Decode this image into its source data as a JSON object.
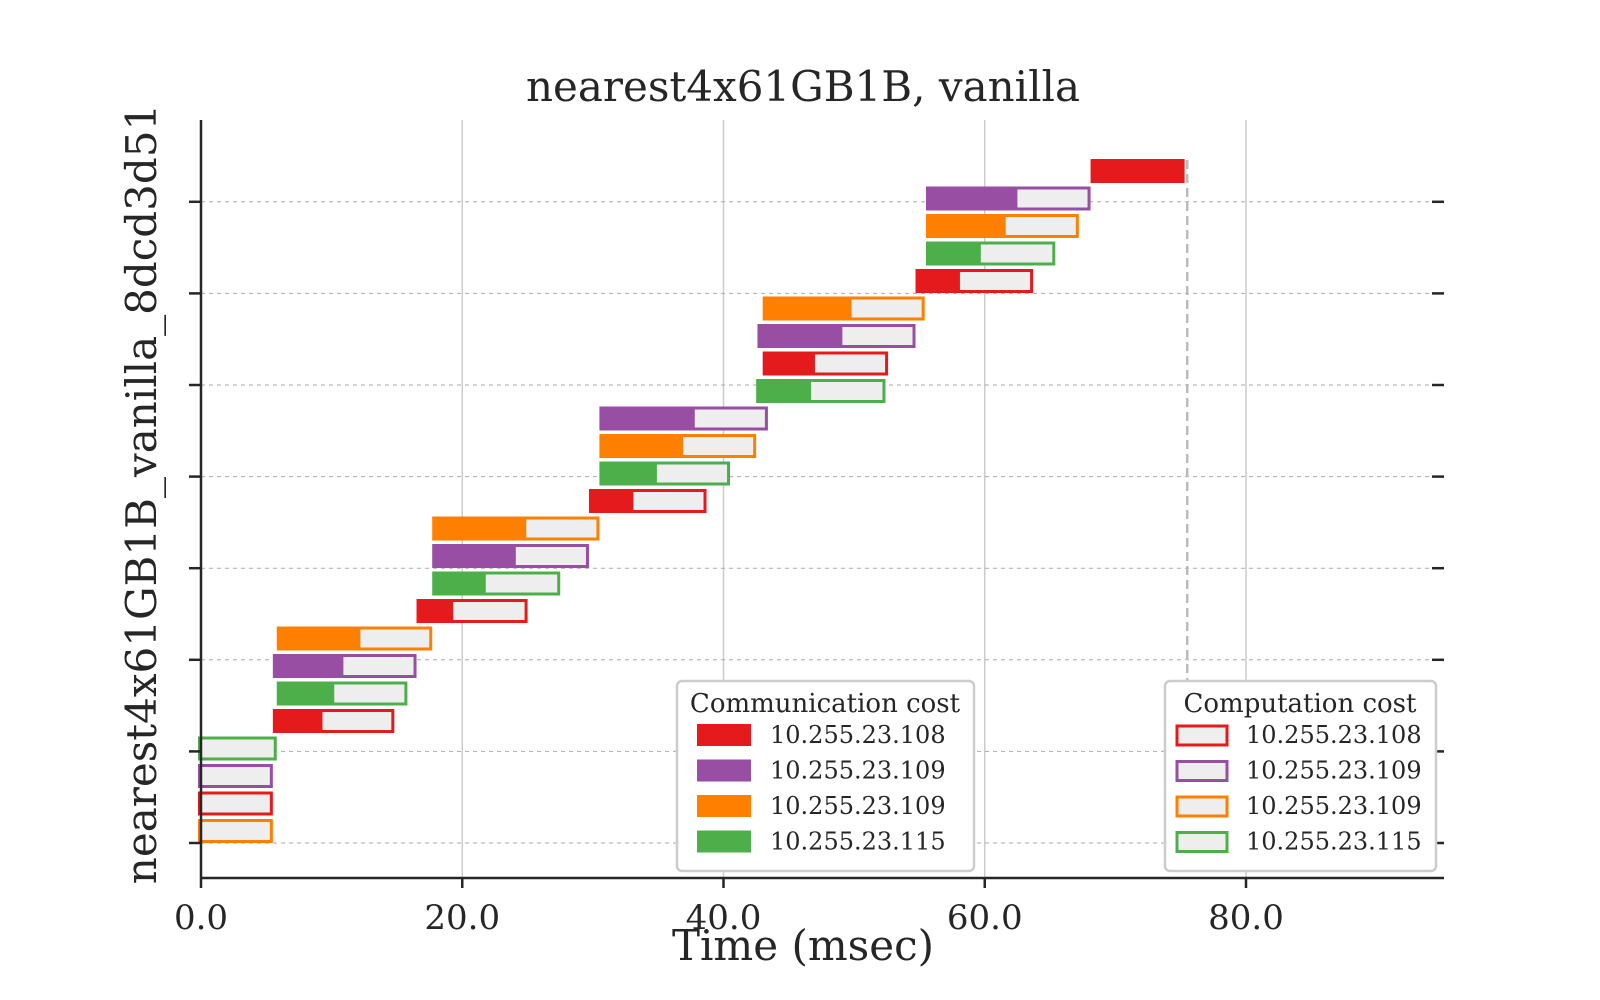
{
  "chart_data": {
    "type": "gantt",
    "title": "nearest4x61GB1B, vanilla",
    "xlabel": "Time (msec)",
    "ylabel": "nearest4x61GB1B_vanilla_8dcd3d51",
    "xlim": [
      0,
      95
    ],
    "xticks": [
      0,
      20,
      40,
      60,
      80
    ],
    "xtick_labels": [
      "0.0",
      "20.0",
      "40.0",
      "60.0",
      "80.0"
    ],
    "y_levels": 8,
    "grid": {
      "x": "solid-light",
      "y": "dashed-at-ticks"
    },
    "end_marker_x": 75.5,
    "colors": {
      "10.255.23.108": "#e41a1c",
      "10.255.23.109a": "#984ea3",
      "10.255.23.109b": "#ff7f00",
      "10.255.23.115": "#4daf4a",
      "compute_fill": "#eeeeee",
      "end_marker": "#bbbbbb"
    },
    "hosts": [
      {
        "key": "10.255.23.108",
        "label": "10.255.23.108"
      },
      {
        "key": "10.255.23.109a",
        "label": "10.255.23.109"
      },
      {
        "key": "10.255.23.109b",
        "label": "10.255.23.109"
      },
      {
        "key": "10.255.23.115",
        "label": "10.255.23.115"
      }
    ],
    "tasks": [
      {
        "host": "10.255.23.109b",
        "row": 0,
        "comm_start": 0.0,
        "comm_end": 0.0,
        "comp_end": 5.5
      },
      {
        "host": "10.255.23.108",
        "row": 1,
        "comm_start": 0.0,
        "comm_end": 0.0,
        "comp_end": 5.5
      },
      {
        "host": "10.255.23.109a",
        "row": 2,
        "comm_start": 0.0,
        "comm_end": 0.0,
        "comp_end": 5.5
      },
      {
        "host": "10.255.23.115",
        "row": 3,
        "comm_start": 0.0,
        "comm_end": 0.0,
        "comp_end": 5.8
      },
      {
        "host": "10.255.23.108",
        "row": 4,
        "comm_start": 5.5,
        "comm_end": 9.3,
        "comp_end": 14.8
      },
      {
        "host": "10.255.23.115",
        "row": 5,
        "comm_start": 5.8,
        "comm_end": 10.2,
        "comp_end": 15.8
      },
      {
        "host": "10.255.23.109a",
        "row": 6,
        "comm_start": 5.5,
        "comm_end": 10.9,
        "comp_end": 16.5
      },
      {
        "host": "10.255.23.109b",
        "row": 7,
        "comm_start": 5.8,
        "comm_end": 12.2,
        "comp_end": 17.7
      },
      {
        "host": "10.255.23.108",
        "row": 8,
        "comm_start": 16.5,
        "comm_end": 19.3,
        "comp_end": 25.0
      },
      {
        "host": "10.255.23.115",
        "row": 9,
        "comm_start": 17.7,
        "comm_end": 21.8,
        "comp_end": 27.5
      },
      {
        "host": "10.255.23.109a",
        "row": 10,
        "comm_start": 17.7,
        "comm_end": 24.1,
        "comp_end": 29.7
      },
      {
        "host": "10.255.23.109b",
        "row": 11,
        "comm_start": 17.7,
        "comm_end": 24.9,
        "comp_end": 30.5
      },
      {
        "host": "10.255.23.108",
        "row": 12,
        "comm_start": 29.7,
        "comm_end": 33.1,
        "comp_end": 38.7
      },
      {
        "host": "10.255.23.115",
        "row": 13,
        "comm_start": 30.5,
        "comm_end": 34.9,
        "comp_end": 40.5
      },
      {
        "host": "10.255.23.109b",
        "row": 14,
        "comm_start": 30.5,
        "comm_end": 36.9,
        "comp_end": 42.5
      },
      {
        "host": "10.255.23.109a",
        "row": 15,
        "comm_start": 30.5,
        "comm_end": 37.8,
        "comp_end": 43.4
      },
      {
        "host": "10.255.23.115",
        "row": 16,
        "comm_start": 42.5,
        "comm_end": 46.7,
        "comp_end": 52.4
      },
      {
        "host": "10.255.23.108",
        "row": 17,
        "comm_start": 43.0,
        "comm_end": 47.0,
        "comp_end": 52.6
      },
      {
        "host": "10.255.23.109a",
        "row": 18,
        "comm_start": 42.6,
        "comm_end": 49.1,
        "comp_end": 54.7
      },
      {
        "host": "10.255.23.109b",
        "row": 19,
        "comm_start": 43.0,
        "comm_end": 49.8,
        "comp_end": 55.4
      },
      {
        "host": "10.255.23.108",
        "row": 20,
        "comm_start": 54.7,
        "comm_end": 58.1,
        "comp_end": 63.7
      },
      {
        "host": "10.255.23.115",
        "row": 21,
        "comm_start": 55.5,
        "comm_end": 59.7,
        "comp_end": 65.4
      },
      {
        "host": "10.255.23.109b",
        "row": 22,
        "comm_start": 55.5,
        "comm_end": 61.6,
        "comp_end": 67.2
      },
      {
        "host": "10.255.23.109a",
        "row": 23,
        "comm_start": 55.5,
        "comm_end": 62.5,
        "comp_end": 68.1
      },
      {
        "host": "10.255.23.108",
        "row": 24,
        "comm_start": 68.1,
        "comm_end": 75.3,
        "comp_end": 75.3
      }
    ]
  },
  "legends": {
    "communication": {
      "title": "Communication cost",
      "style": "filled"
    },
    "computation": {
      "title": "Computation cost",
      "style": "outlined"
    }
  }
}
